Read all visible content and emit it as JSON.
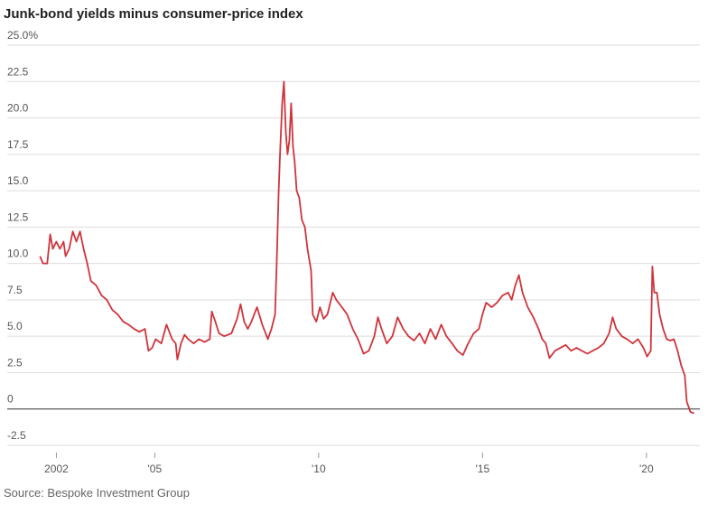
{
  "chart_data": {
    "type": "line",
    "title": "Junk-bond yields minus consumer-price index",
    "source": "Source: Bespoke Investment Group",
    "xlim": [
      2000.5,
      2021.63
    ],
    "xticks": [
      {
        "value": 2002,
        "label": "2002"
      },
      {
        "value": 2005,
        "label": "'05"
      },
      {
        "value": 2010,
        "label": "'10"
      },
      {
        "value": 2015,
        "label": "'15"
      },
      {
        "value": 2020,
        "label": "'20"
      }
    ],
    "ylim": [
      -2.5,
      25
    ],
    "yticks": [
      -2.5,
      0,
      2.5,
      {
        "value": 5,
        "label": "5.0"
      },
      7.5,
      {
        "value": 10,
        "label": "10.0"
      },
      12.5,
      {
        "value": 15,
        "label": "15.0"
      },
      17.5,
      {
        "value": 20,
        "label": "20.0"
      },
      22.5,
      {
        "value": 25,
        "label": "25.0%"
      }
    ],
    "grid": true,
    "x": [
      2001.5,
      2001.59,
      2001.72,
      2001.81,
      2001.89,
      2002.0,
      2002.11,
      2002.22,
      2002.28,
      2002.39,
      2002.5,
      2002.61,
      2002.72,
      2002.83,
      2002.94,
      2003.05,
      2003.21,
      2003.38,
      2003.54,
      2003.71,
      2003.87,
      2004.04,
      2004.2,
      2004.37,
      2004.53,
      2004.7,
      2004.81,
      2004.92,
      2005.03,
      2005.2,
      2005.36,
      2005.53,
      2005.64,
      2005.69,
      2005.8,
      2005.91,
      2006.02,
      2006.19,
      2006.35,
      2006.52,
      2006.68,
      2006.74,
      2006.85,
      2006.96,
      2007.12,
      2007.34,
      2007.51,
      2007.62,
      2007.73,
      2007.84,
      2007.95,
      2008.12,
      2008.28,
      2008.45,
      2008.56,
      2008.67,
      2008.72,
      2008.78,
      2008.83,
      2008.89,
      2008.94,
      2009.0,
      2009.05,
      2009.11,
      2009.16,
      2009.22,
      2009.27,
      2009.33,
      2009.41,
      2009.49,
      2009.58,
      2009.66,
      2009.77,
      2009.82,
      2009.93,
      2010.04,
      2010.15,
      2010.27,
      2010.43,
      2010.54,
      2010.71,
      2010.87,
      2011.04,
      2011.2,
      2011.37,
      2011.53,
      2011.7,
      2011.81,
      2011.92,
      2012.08,
      2012.25,
      2012.41,
      2012.58,
      2012.74,
      2012.91,
      2013.08,
      2013.24,
      2013.41,
      2013.57,
      2013.74,
      2013.9,
      2014.07,
      2014.23,
      2014.4,
      2014.56,
      2014.73,
      2014.89,
      2015.0,
      2015.11,
      2015.28,
      2015.44,
      2015.61,
      2015.78,
      2015.89,
      2016.0,
      2016.11,
      2016.22,
      2016.38,
      2016.55,
      2016.71,
      2016.82,
      2016.93,
      2017.04,
      2017.21,
      2017.37,
      2017.54,
      2017.7,
      2017.87,
      2018.03,
      2018.2,
      2018.36,
      2018.53,
      2018.7,
      2018.86,
      2018.97,
      2019.08,
      2019.25,
      2019.41,
      2019.58,
      2019.74,
      2019.91,
      2020.02,
      2020.13,
      2020.18,
      2020.24,
      2020.32,
      2020.4,
      2020.51,
      2020.62,
      2020.73,
      2020.84,
      2020.95,
      2021.06,
      2021.17,
      2021.23,
      2021.34,
      2021.45
    ],
    "series": [
      {
        "color": "#d0343c",
        "values": [
          10.5,
          10.0,
          10.0,
          12.0,
          11.0,
          11.5,
          11.0,
          11.5,
          10.5,
          11.0,
          12.2,
          11.5,
          12.2,
          11.0,
          10.0,
          8.8,
          8.5,
          7.8,
          7.5,
          6.8,
          6.5,
          6.0,
          5.8,
          5.5,
          5.3,
          5.5,
          4.0,
          4.2,
          4.8,
          4.5,
          5.8,
          4.8,
          4.5,
          3.4,
          4.5,
          5.1,
          4.8,
          4.5,
          4.8,
          4.6,
          4.8,
          6.7,
          6.0,
          5.2,
          5.0,
          5.2,
          6.2,
          7.2,
          6.0,
          5.5,
          6.0,
          7.0,
          5.8,
          4.8,
          5.5,
          6.5,
          10.0,
          15.0,
          18.0,
          21.0,
          22.5,
          19.0,
          17.5,
          18.5,
          21.0,
          18.0,
          17.0,
          15.0,
          14.5,
          13.0,
          12.5,
          11.0,
          9.5,
          6.5,
          6.0,
          7.0,
          6.2,
          6.5,
          8.0,
          7.5,
          7.0,
          6.5,
          5.5,
          4.8,
          3.8,
          4.0,
          5.0,
          6.3,
          5.5,
          4.5,
          5.0,
          6.3,
          5.5,
          5.0,
          4.7,
          5.2,
          4.5,
          5.5,
          4.8,
          5.8,
          5.0,
          4.5,
          4.0,
          3.7,
          4.5,
          5.2,
          5.5,
          6.5,
          7.3,
          7.0,
          7.3,
          7.8,
          8.0,
          7.5,
          8.5,
          9.2,
          8.0,
          7.0,
          6.3,
          5.5,
          4.8,
          4.5,
          3.5,
          4.0,
          4.2,
          4.4,
          4.0,
          4.2,
          4.0,
          3.8,
          4.0,
          4.2,
          4.5,
          5.2,
          6.3,
          5.5,
          5.0,
          4.8,
          4.5,
          4.8,
          4.2,
          3.6,
          4.0,
          9.8,
          8.0,
          8.0,
          6.5,
          5.5,
          4.8,
          4.7,
          4.8,
          4.0,
          3.0,
          2.3,
          0.5,
          -0.2,
          -0.3
        ]
      }
    ]
  }
}
